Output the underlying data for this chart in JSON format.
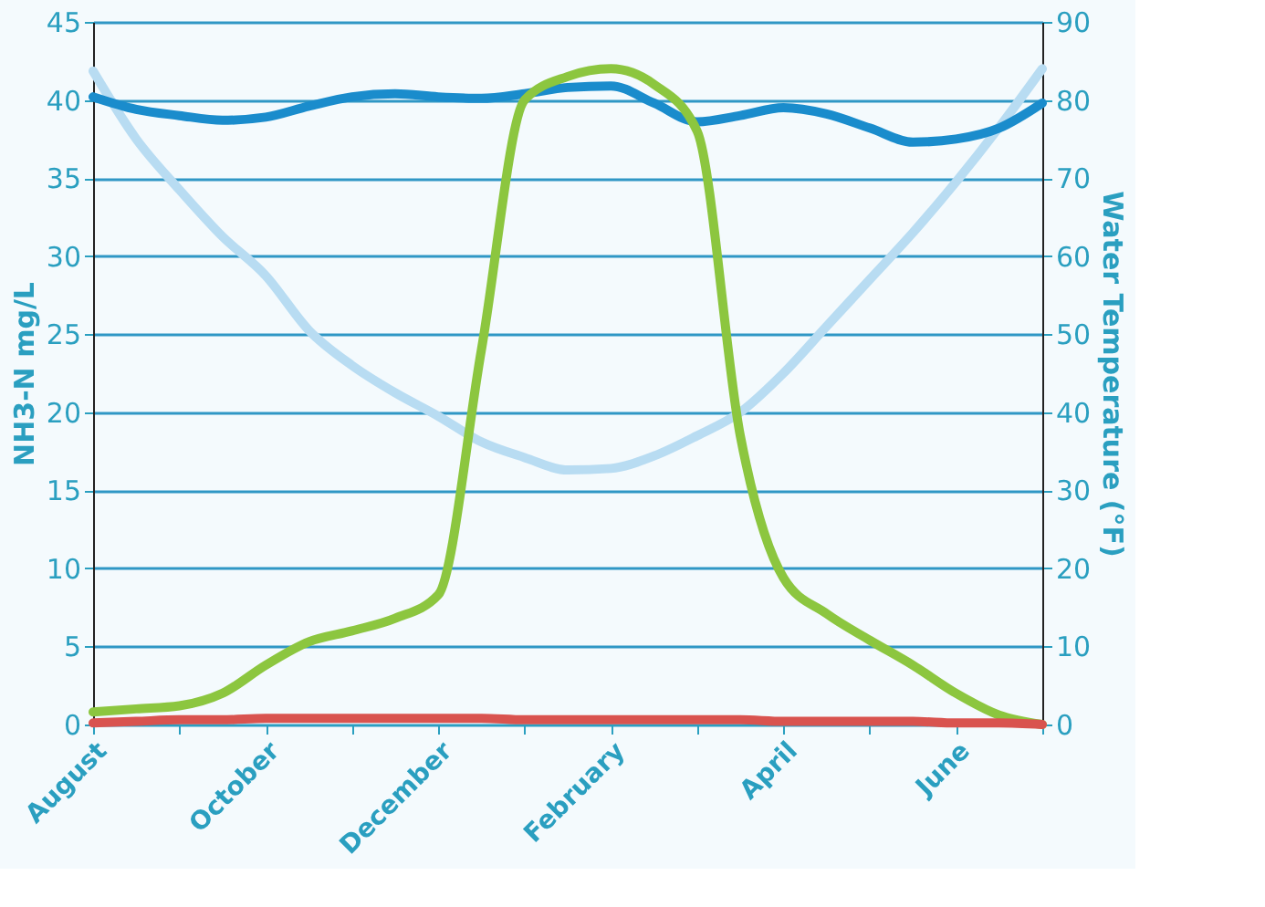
{
  "chart_data": {
    "type": "line",
    "ylabel": "NH3-N mg/L",
    "y2label": "Water Temperature (°F)",
    "categories": [
      "August",
      null,
      null,
      null,
      "October",
      null,
      null,
      null,
      "December",
      null,
      null,
      null,
      "February",
      null,
      null,
      null,
      "April",
      null,
      null,
      null,
      "June",
      null,
      null
    ],
    "ylim": [
      0,
      45
    ],
    "yticks": [
      0,
      5,
      10,
      15,
      20,
      25,
      30,
      35,
      40,
      45
    ],
    "y2lim": [
      0,
      90
    ],
    "y2ticks": [
      0,
      10,
      20,
      30,
      40,
      50,
      60,
      70,
      80,
      90
    ],
    "grid": "y",
    "line_style": "solid",
    "series": [
      {
        "color": "#b8dcf2",
        "axis": "y2",
        "values": [
          83.7,
          75,
          68.5,
          62.5,
          57.5,
          50.5,
          46,
          42.5,
          39.5,
          36.2,
          34.2,
          32.6,
          32.8,
          34.4,
          37,
          40,
          45,
          51,
          57,
          63,
          69.5,
          76.5,
          84
        ]
      },
      {
        "color": "#1a8ccc",
        "values": [
          40.2,
          39.4,
          39.0,
          38.7,
          38.9,
          39.6,
          40.2,
          40.4,
          40.2,
          40.1,
          40.4,
          40.8,
          40.9,
          39.8,
          38.6,
          39.0,
          39.5,
          39.1,
          38.2,
          37.3,
          37.5,
          38.2,
          39.8
        ]
      },
      {
        "color": "#8cc63f",
        "values": [
          0.8,
          1.0,
          1.2,
          2.0,
          3.8,
          5.3,
          6.0,
          6.8,
          8.3,
          24,
          40.0,
          41.5,
          42.0,
          41.0,
          38.0,
          18.5,
          9.4,
          7.1,
          5.4,
          3.8,
          2.0,
          0.6,
          0
        ]
      },
      {
        "color": "#d9534f",
        "values": [
          0.1,
          0.2,
          0.3,
          0.3,
          0.4,
          0.4,
          0.4,
          0.4,
          0.4,
          0.4,
          0.3,
          0.3,
          0.3,
          0.3,
          0.3,
          0.3,
          0.2,
          0.2,
          0.2,
          0.2,
          0.1,
          0.1,
          0
        ]
      }
    ]
  }
}
